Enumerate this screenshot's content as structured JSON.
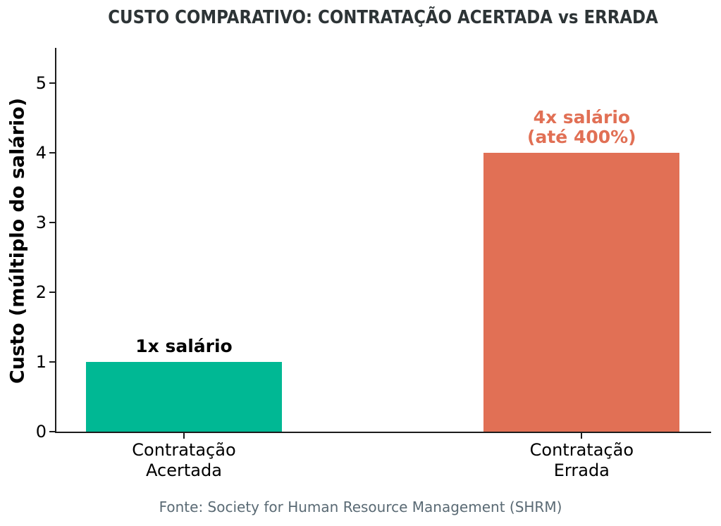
{
  "chart_data": {
    "type": "bar",
    "title": "CUSTO COMPARATIVO: CONTRATAÇÃO ACERTADA vs ERRADA",
    "ylabel": "Custo (múltiplo do salário)",
    "xlabel": "",
    "categories": [
      "Contratação\nAcertada",
      "Contratação\nErrada"
    ],
    "values": [
      1,
      4
    ],
    "bar_labels": [
      "1x salário",
      "4x salário\n(até 400%)"
    ],
    "bar_colors": [
      "#00b894",
      "#e17055"
    ],
    "bar_label_colors": [
      "#000000",
      "#e17055"
    ],
    "y_ticks": [
      0,
      1,
      2,
      3,
      4,
      5
    ],
    "ylim": [
      0,
      5.5
    ],
    "grid": false,
    "legend": "none",
    "source": "Fonte: Society for Human Resource Management (SHRM)",
    "text_colors": {
      "title": "#2d3436",
      "source": "#5a6a74",
      "axis": "#1c1c1c",
      "tick_labels": "#000000"
    }
  }
}
